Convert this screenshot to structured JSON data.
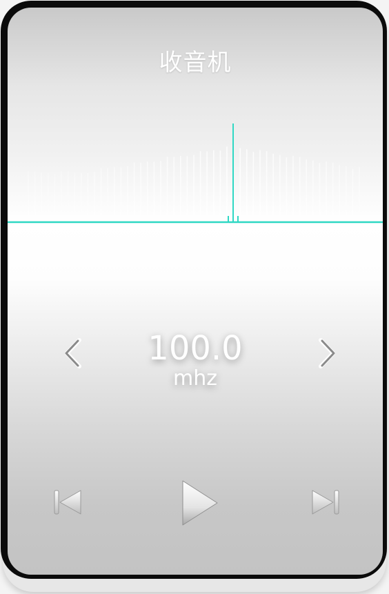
{
  "app": {
    "title": "收音机"
  },
  "tuner": {
    "accent_color": "#2fd8c4",
    "tick_color": "#ffffff"
  },
  "frequency": {
    "value": "100.0",
    "unit": "mhz"
  },
  "controls": {
    "prev_frequency_icon": "chevron-left-icon",
    "next_frequency_icon": "chevron-right-icon",
    "skip_previous_icon": "skip-previous-icon",
    "play_icon": "play-icon",
    "skip_next_icon": "skip-next-icon"
  }
}
